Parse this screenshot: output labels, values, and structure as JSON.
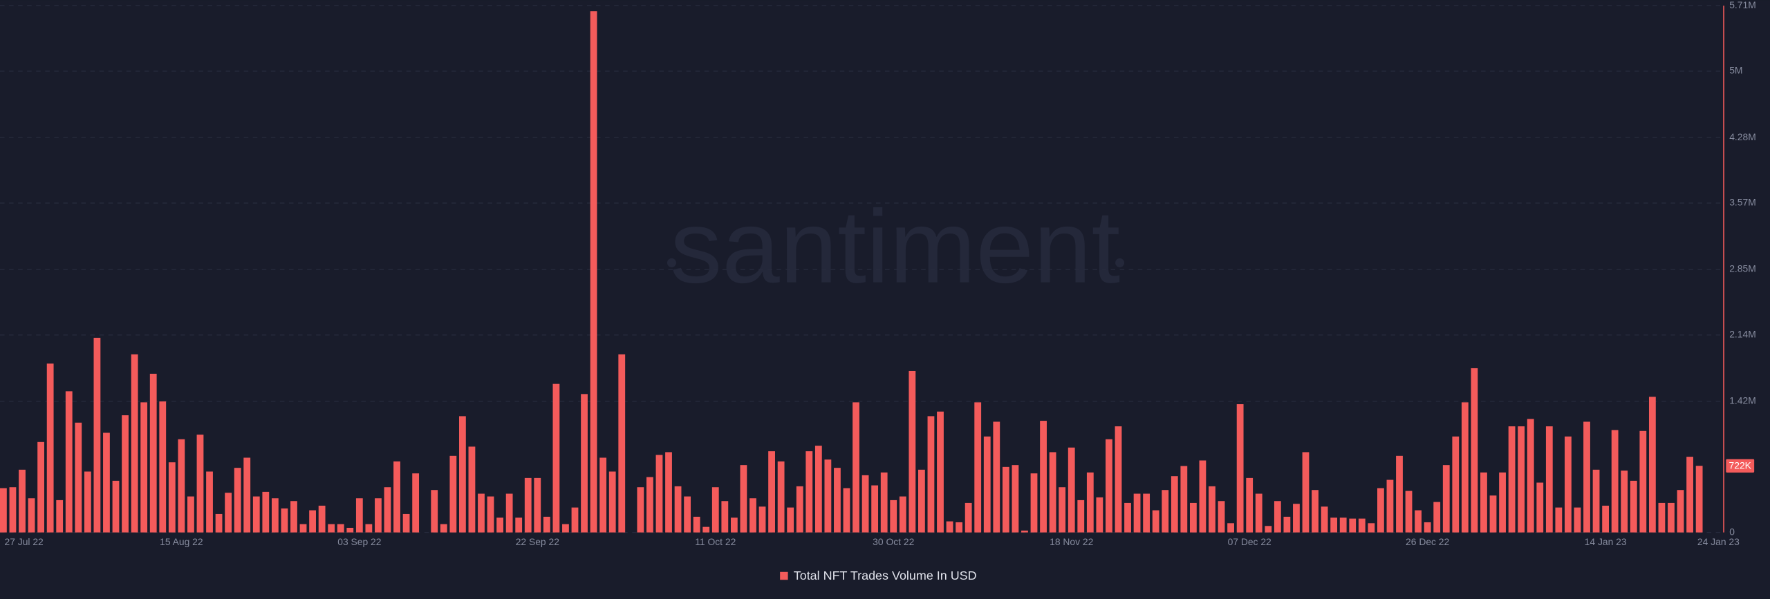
{
  "chart_data": {
    "type": "bar",
    "watermark": "santiment",
    "categories": [
      "27 Jul 22",
      null,
      null,
      null,
      null,
      null,
      null,
      null,
      null,
      null,
      null,
      null,
      null,
      null,
      null,
      null,
      null,
      null,
      null,
      "15 Aug 22",
      null,
      null,
      null,
      null,
      null,
      null,
      null,
      null,
      null,
      null,
      null,
      null,
      null,
      null,
      null,
      null,
      null,
      null,
      "03 Sep 22",
      null,
      null,
      null,
      null,
      null,
      null,
      null,
      null,
      null,
      null,
      null,
      null,
      null,
      null,
      null,
      null,
      null,
      null,
      "22 Sep 22",
      null,
      null,
      null,
      null,
      null,
      null,
      null,
      null,
      null,
      null,
      null,
      null,
      null,
      null,
      null,
      null,
      null,
      null,
      "11 Oct 22",
      null,
      null,
      null,
      null,
      null,
      null,
      null,
      null,
      null,
      null,
      null,
      null,
      null,
      null,
      null,
      null,
      null,
      null,
      "30 Oct 22",
      null,
      null,
      null,
      null,
      null,
      null,
      null,
      null,
      null,
      null,
      null,
      null,
      null,
      null,
      null,
      null,
      null,
      null,
      "18 Nov 22",
      null,
      null,
      null,
      null,
      null,
      null,
      null,
      null,
      null,
      null,
      null,
      null,
      null,
      null,
      null,
      null,
      null,
      null,
      "07 Dec 22",
      null,
      null,
      null,
      null,
      null,
      null,
      null,
      null,
      null,
      null,
      null,
      null,
      null,
      null,
      null,
      null,
      null,
      null,
      "26 Dec 22",
      null,
      null,
      null,
      null,
      null,
      null,
      null,
      null,
      null,
      null,
      null,
      null,
      null,
      null,
      null,
      null,
      null,
      null,
      "14 Jan 23",
      null,
      null,
      null,
      null,
      null,
      null,
      null,
      null,
      null,
      "24 Jan 23"
    ],
    "series": [
      {
        "name": "Total NFT Trades Volume In USD",
        "color": "#f45b5b",
        "values": [
          480000,
          490000,
          680000,
          370000,
          980000,
          1830000,
          350000,
          1530000,
          1190000,
          660000,
          2110000,
          1080000,
          560000,
          1270000,
          1930000,
          1410000,
          1720000,
          1420000,
          760000,
          1010000,
          390000,
          1060000,
          660000,
          200000,
          430000,
          700000,
          810000,
          390000,
          440000,
          370000,
          260000,
          340000,
          90000,
          240000,
          290000,
          90000,
          90000,
          50000,
          370000,
          90000,
          370000,
          490000,
          770000,
          200000,
          640000,
          0,
          460000,
          90000,
          830000,
          1260000,
          930000,
          420000,
          390000,
          160000,
          420000,
          160000,
          590000,
          590000,
          170000,
          1610000,
          90000,
          270000,
          1500000,
          5650000,
          810000,
          660000,
          1930000,
          0,
          490000,
          600000,
          840000,
          870000,
          500000,
          390000,
          170000,
          60000,
          490000,
          340000,
          160000,
          730000,
          370000,
          280000,
          880000,
          770000,
          270000,
          500000,
          880000,
          940000,
          790000,
          700000,
          480000,
          1410000,
          620000,
          510000,
          650000,
          350000,
          390000,
          1750000,
          680000,
          1260000,
          1310000,
          120000,
          110000,
          320000,
          1410000,
          1040000,
          1200000,
          710000,
          730000,
          20000,
          640000,
          1210000,
          870000,
          490000,
          920000,
          350000,
          650000,
          380000,
          1010000,
          1150000,
          320000,
          420000,
          420000,
          240000,
          460000,
          610000,
          720000,
          320000,
          780000,
          500000,
          340000,
          100000,
          1390000,
          590000,
          420000,
          70000,
          340000,
          170000,
          310000,
          870000,
          460000,
          280000,
          160000,
          160000,
          150000,
          150000,
          100000,
          480000,
          570000,
          830000,
          450000,
          240000,
          110000,
          330000,
          730000,
          1040000,
          1410000,
          1780000,
          650000,
          400000,
          650000,
          1150000,
          1150000,
          1230000,
          540000,
          1150000,
          270000,
          1040000,
          270000,
          1200000,
          680000,
          290000,
          1110000,
          670000,
          560000,
          1100000,
          1470000,
          320000,
          320000,
          460000,
          820000,
          722000
        ],
        "value_labels": [
          null,
          null,
          null,
          null,
          null,
          null,
          null,
          null,
          null,
          null,
          null,
          null,
          null,
          null,
          null,
          null,
          null,
          null,
          null,
          null,
          null,
          null,
          null,
          null,
          null,
          null,
          null,
          null,
          null,
          null,
          null,
          null,
          null,
          null,
          null,
          null,
          null,
          null,
          null,
          null,
          null,
          null,
          null,
          null,
          null,
          null,
          null,
          null,
          null,
          null,
          null,
          null,
          null,
          null,
          null,
          null,
          null,
          null,
          null,
          null,
          null,
          null,
          null,
          null,
          null,
          null,
          null,
          null,
          null,
          null,
          null,
          null,
          null,
          null,
          null,
          null,
          null,
          null,
          null,
          null,
          null,
          null,
          null,
          null,
          null,
          null,
          null,
          null,
          null,
          null,
          null,
          null,
          null,
          null,
          null,
          null,
          null,
          null,
          null,
          null,
          null,
          null,
          null,
          null,
          null,
          null,
          null,
          null,
          null,
          null,
          null,
          null,
          null,
          null,
          null,
          null,
          null,
          null,
          null,
          null,
          null,
          null,
          null,
          null,
          null,
          null,
          null,
          null,
          null,
          null,
          null,
          null,
          null,
          null,
          null,
          null,
          null,
          null,
          null,
          null,
          null,
          null,
          null,
          null,
          null,
          null,
          null,
          null,
          null,
          null,
          null,
          null,
          null,
          null,
          null,
          null,
          null,
          null,
          null,
          null,
          null,
          null,
          null,
          null,
          null,
          null,
          null,
          null,
          null,
          null,
          null,
          null,
          null,
          null,
          null,
          null,
          null,
          null,
          null,
          null,
          null,
          "722K"
        ]
      }
    ],
    "ylim": [
      0,
      5710000
    ],
    "yticks": [
      0,
      {
        "value": 1420000,
        "label": "1.42M"
      },
      {
        "value": 2140000,
        "label": "2.14M"
      },
      {
        "value": 2850000,
        "label": "2.85M"
      },
      {
        "value": 3570000,
        "label": "3.57M"
      },
      {
        "value": 4280000,
        "label": "4.28M"
      },
      {
        "value": 5000000,
        "label": "5M"
      },
      {
        "value": 5710000,
        "label": "5.71M"
      }
    ],
    "grid": true,
    "legend": "bottom"
  }
}
